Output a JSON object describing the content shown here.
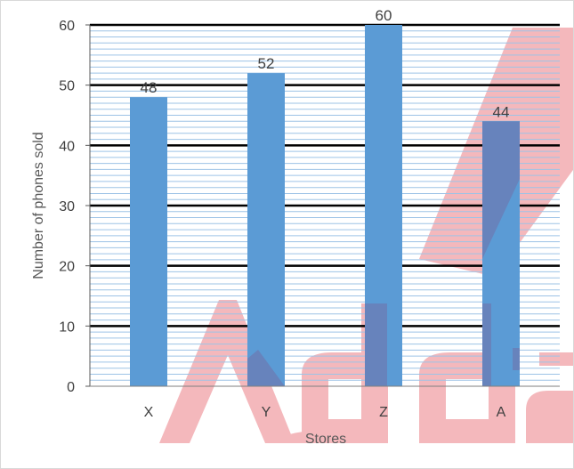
{
  "chart_data": {
    "type": "bar",
    "categories": [
      "X",
      "Y",
      "Z",
      "A"
    ],
    "values": [
      48,
      52,
      60,
      44
    ],
    "data_labels": [
      "48",
      "52",
      "60",
      "44"
    ],
    "xlabel": "Stores",
    "ylabel": "Number of phones sold",
    "ylim": [
      0,
      60
    ],
    "yticks": [
      0,
      10,
      20,
      30,
      40,
      50,
      60
    ],
    "major_gridline_step": 10,
    "minor_gridline_step": 1,
    "grid": true,
    "colors": {
      "bar": "#5b9bd5",
      "major_grid": "#000000",
      "minor_grid": "#9dc3e6",
      "watermark": "#f4b8bc",
      "watermark_overlap": "#6b7bb3"
    }
  },
  "watermark": {
    "text": "Adda",
    "shape": "adda-logo"
  }
}
